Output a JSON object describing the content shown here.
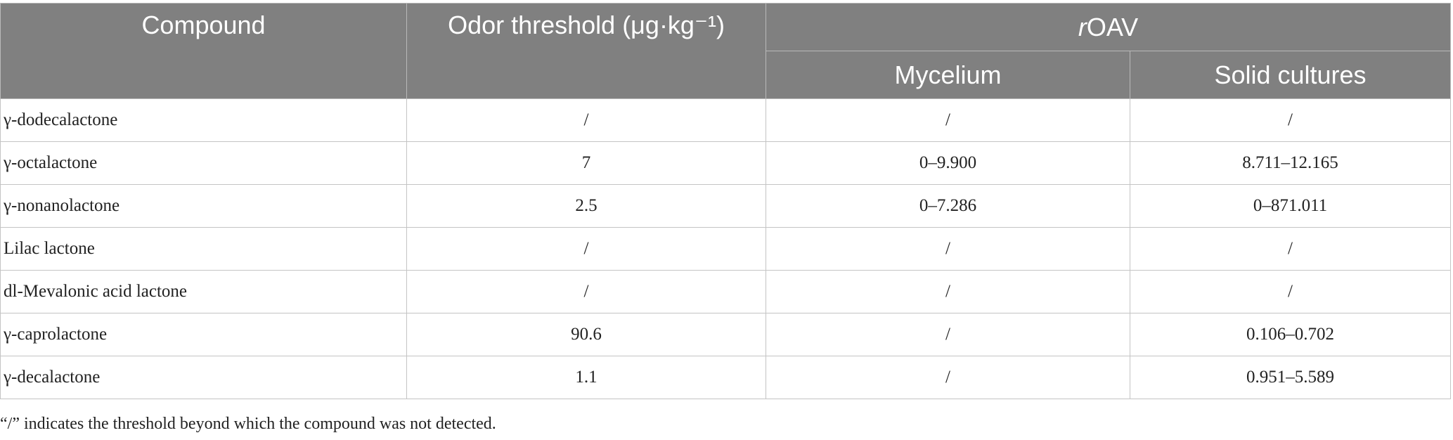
{
  "table": {
    "headers": {
      "compound": "Compound",
      "odor_threshold": "Odor threshold (μg·kg⁻¹)",
      "roav_prefix": "r",
      "roav_suffix": "OAV",
      "mycelium": "Mycelium",
      "solid_cultures": "Solid cultures"
    },
    "rows": [
      {
        "compound": "γ-dodecalactone",
        "threshold": "/",
        "mycelium": "/",
        "solid": "/"
      },
      {
        "compound": "γ-octalactone",
        "threshold": "7",
        "mycelium": "0–9.900",
        "solid": "8.711–12.165"
      },
      {
        "compound": "γ-nonanolactone",
        "threshold": "2.5",
        "mycelium": "0–7.286",
        "solid": "0–871.011"
      },
      {
        "compound": "Lilac lactone",
        "threshold": "/",
        "mycelium": "/",
        "solid": "/"
      },
      {
        "compound": "dl-Mevalonic acid lactone",
        "threshold": "/",
        "mycelium": "/",
        "solid": "/"
      },
      {
        "compound": "γ-caprolactone",
        "threshold": "90.6",
        "mycelium": "/",
        "solid": "0.106–0.702"
      },
      {
        "compound": "γ-decalactone",
        "threshold": "1.1",
        "mycelium": "/",
        "solid": "0.951–5.589"
      }
    ],
    "footnote": "“/” indicates the threshold beyond which the compound was not detected."
  },
  "colors": {
    "header_background": "#808080",
    "header_text": "#ffffff",
    "border": "#c4c4c4",
    "body_text": "#222222"
  }
}
